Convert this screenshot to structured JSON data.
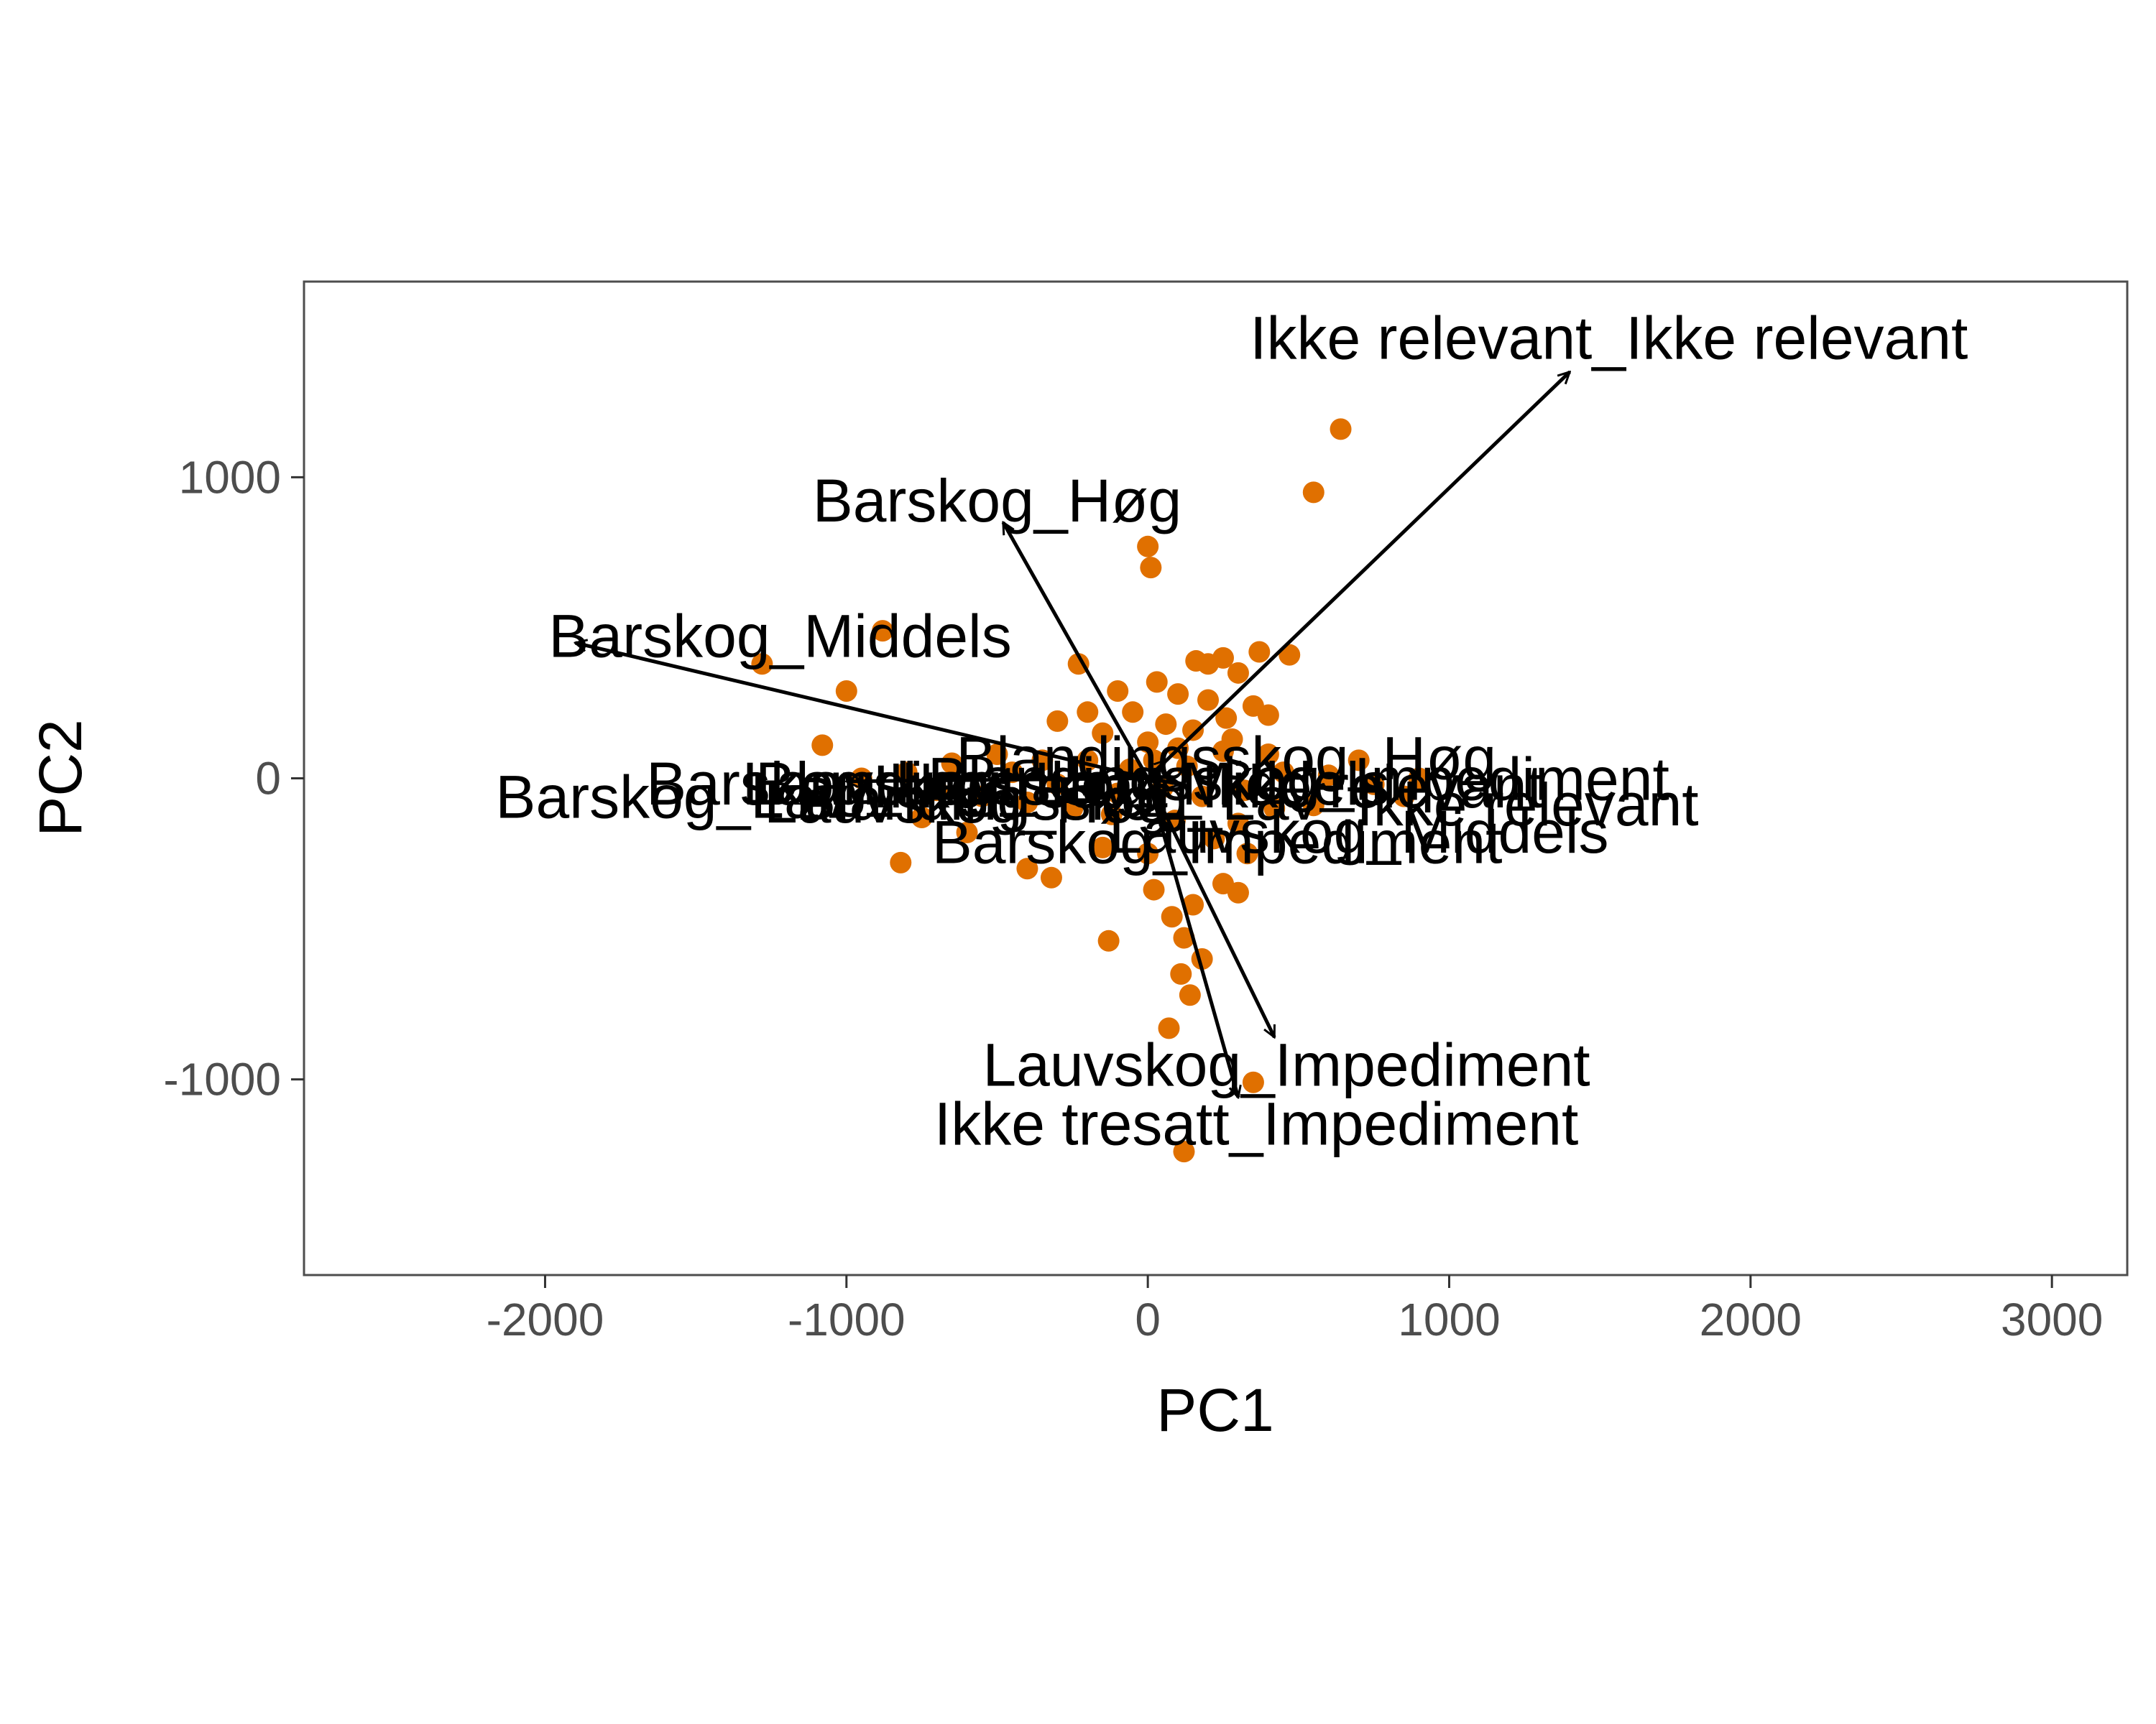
{
  "chart_data": {
    "type": "scatter",
    "title": "",
    "xlabel": "PC1",
    "ylabel": "PC2",
    "xlim": [
      -2800,
      3250
    ],
    "ylim": [
      -1650,
      1650
    ],
    "x_ticks": [
      -2000,
      -1000,
      0,
      1000,
      2000,
      3000
    ],
    "y_ticks": [
      -1000,
      0,
      1000
    ],
    "x_tick_labels": [
      "-2000",
      "-1000",
      "0",
      "1000",
      "2000",
      "3000"
    ],
    "y_tick_labels": [
      "-1000",
      "0",
      "1000"
    ],
    "grid": false,
    "legend": "none",
    "colors": {
      "points": "#e07000",
      "arrows": "#000000",
      "frame": "#4d4d4d"
    },
    "points": [
      {
        "x": 640,
        "y": 1160
      },
      {
        "x": 550,
        "y": 950
      },
      {
        "x": 0,
        "y": 770
      },
      {
        "x": 10,
        "y": 700
      },
      {
        "x": -880,
        "y": 490
      },
      {
        "x": -1280,
        "y": 380
      },
      {
        "x": -1000,
        "y": 290
      },
      {
        "x": -1080,
        "y": 110
      },
      {
        "x": -820,
        "y": -280
      },
      {
        "x": -400,
        "y": -300
      },
      {
        "x": -320,
        "y": -330
      },
      {
        "x": -130,
        "y": -540
      },
      {
        "x": 20,
        "y": -370
      },
      {
        "x": 120,
        "y": -530
      },
      {
        "x": 140,
        "y": -720
      },
      {
        "x": 70,
        "y": -830
      },
      {
        "x": 350,
        "y": -1010
      },
      {
        "x": 120,
        "y": -1240
      },
      {
        "x": 370,
        "y": 420
      },
      {
        "x": 470,
        "y": 410
      },
      {
        "x": 250,
        "y": 400
      },
      {
        "x": 200,
        "y": 380
      },
      {
        "x": 160,
        "y": 390
      },
      {
        "x": 300,
        "y": 350
      },
      {
        "x": -230,
        "y": 380
      },
      {
        "x": 30,
        "y": 320
      },
      {
        "x": -100,
        "y": 290
      },
      {
        "x": 100,
        "y": 280
      },
      {
        "x": 200,
        "y": 260
      },
      {
        "x": 260,
        "y": 200
      },
      {
        "x": -200,
        "y": 220
      },
      {
        "x": 350,
        "y": 240
      },
      {
        "x": 400,
        "y": 210
      },
      {
        "x": -50,
        "y": 220
      },
      {
        "x": 60,
        "y": 180
      },
      {
        "x": 150,
        "y": 160
      },
      {
        "x": -300,
        "y": 190
      },
      {
        "x": -150,
        "y": 150
      },
      {
        "x": 0,
        "y": 120
      },
      {
        "x": 100,
        "y": 100
      },
      {
        "x": 250,
        "y": 90
      },
      {
        "x": -350,
        "y": 60
      },
      {
        "x": -500,
        "y": 80
      },
      {
        "x": -650,
        "y": 50
      },
      {
        "x": -800,
        "y": 20
      },
      {
        "x": -950,
        "y": 0
      },
      {
        "x": -700,
        "y": -40
      },
      {
        "x": -550,
        "y": -60
      },
      {
        "x": -400,
        "y": -80
      },
      {
        "x": -250,
        "y": -100
      },
      {
        "x": -100,
        "y": -50
      },
      {
        "x": 50,
        "y": -30
      },
      {
        "x": 180,
        "y": -60
      },
      {
        "x": 320,
        "y": -40
      },
      {
        "x": 450,
        "y": 20
      },
      {
        "x": 600,
        "y": 10
      },
      {
        "x": 750,
        "y": -20
      },
      {
        "x": 900,
        "y": 0
      },
      {
        "x": 300,
        "y": -150
      },
      {
        "x": 220,
        "y": -200
      },
      {
        "x": 330,
        "y": -250
      },
      {
        "x": 250,
        "y": -350
      },
      {
        "x": 300,
        "y": -380
      },
      {
        "x": 150,
        "y": -420
      },
      {
        "x": 80,
        "y": -460
      },
      {
        "x": 180,
        "y": -600
      },
      {
        "x": 110,
        "y": -650
      },
      {
        "x": 0,
        "y": -250
      },
      {
        "x": -150,
        "y": -230
      },
      {
        "x": -600,
        "y": -180
      },
      {
        "x": -750,
        "y": -130
      },
      {
        "x": -200,
        "y": 60
      },
      {
        "x": 400,
        "y": 80
      },
      {
        "x": 550,
        "y": -90
      },
      {
        "x": 700,
        "y": 60
      },
      {
        "x": 850,
        "y": -60
      },
      {
        "x": -60,
        "y": 30
      },
      {
        "x": 130,
        "y": 40
      },
      {
        "x": 20,
        "y": 60
      },
      {
        "x": -120,
        "y": -120
      },
      {
        "x": 90,
        "y": -140
      },
      {
        "x": -450,
        "y": 20
      },
      {
        "x": 420,
        "y": -100
      },
      {
        "x": -300,
        "y": -20
      },
      {
        "x": 280,
        "y": 130
      }
    ],
    "loadings": [
      {
        "label": "Ikke relevant_Ikke relevant",
        "x": 1400,
        "y": 1350
      },
      {
        "label": "Barskog_Høg",
        "x": -480,
        "y": 850
      },
      {
        "label": "Barskog_Middels",
        "x": -1900,
        "y": 450
      },
      {
        "label": "Blandingsskog_Høg",
        "x": 60,
        "y": 60
      },
      {
        "label": "Lauvskog_Impediment",
        "x": 420,
        "y": -860
      },
      {
        "label": "Ikke tresatt_Impediment",
        "x": 300,
        "y": -1060
      },
      {
        "label": "Barskog_Impediment",
        "x": -30,
        "y": -60
      },
      {
        "label": "Barskog_Lav",
        "x": -1000,
        "y": -10
      },
      {
        "label": "Lauvskog_Middels",
        "x": 70,
        "y": -40
      },
      {
        "label": "Ikke tresatt_Ikke relevant",
        "x": 110,
        "y": -20
      }
    ],
    "loading_labels": [
      {
        "text": "Ikke relevant_Ikke relevant",
        "x": 1530,
        "y": 1460
      },
      {
        "text": "Barskog_Høg",
        "x": -500,
        "y": 920
      },
      {
        "text": "Barskog_Middels",
        "x": -1220,
        "y": 470
      },
      {
        "text": "Blandingsskog_Høg",
        "x": 260,
        "y": 65
      },
      {
        "text": "Barskog_Lav",
        "x": -1580,
        "y": -65
      },
      {
        "text": "Ikke relevant",
        "x": 1260,
        "y": -90
      },
      {
        "text": "Lauvskog_Middels",
        "x": 700,
        "y": -180
      },
      {
        "text": "Barskog_Impediment",
        "x": 230,
        "y": -215
      },
      {
        "text": "Lauvskog_Impediment",
        "x": 460,
        "y": -955
      },
      {
        "text": "Ikke tresatt_Impediment",
        "x": 360,
        "y": -1150
      },
      {
        "text": "Barskog_Lav",
        "x": -1080,
        "y": -20
      },
      {
        "text": "Blandingsskog_Middels",
        "x": -250,
        "y": -20
      },
      {
        "text": "Lauvskog_Lav",
        "x": -700,
        "y": -20
      },
      {
        "text": "Blandingsskog_Lav",
        "x": -300,
        "y": -70
      },
      {
        "text": "Ikke tresatt_Ikke relevant",
        "x": 200,
        "y": -30
      },
      {
        "text": "Blandingsskog_Impediment",
        "x": 500,
        "y": -5
      },
      {
        "text": "Lauvskog_Høg",
        "x": -600,
        "y": -80
      }
    ]
  }
}
